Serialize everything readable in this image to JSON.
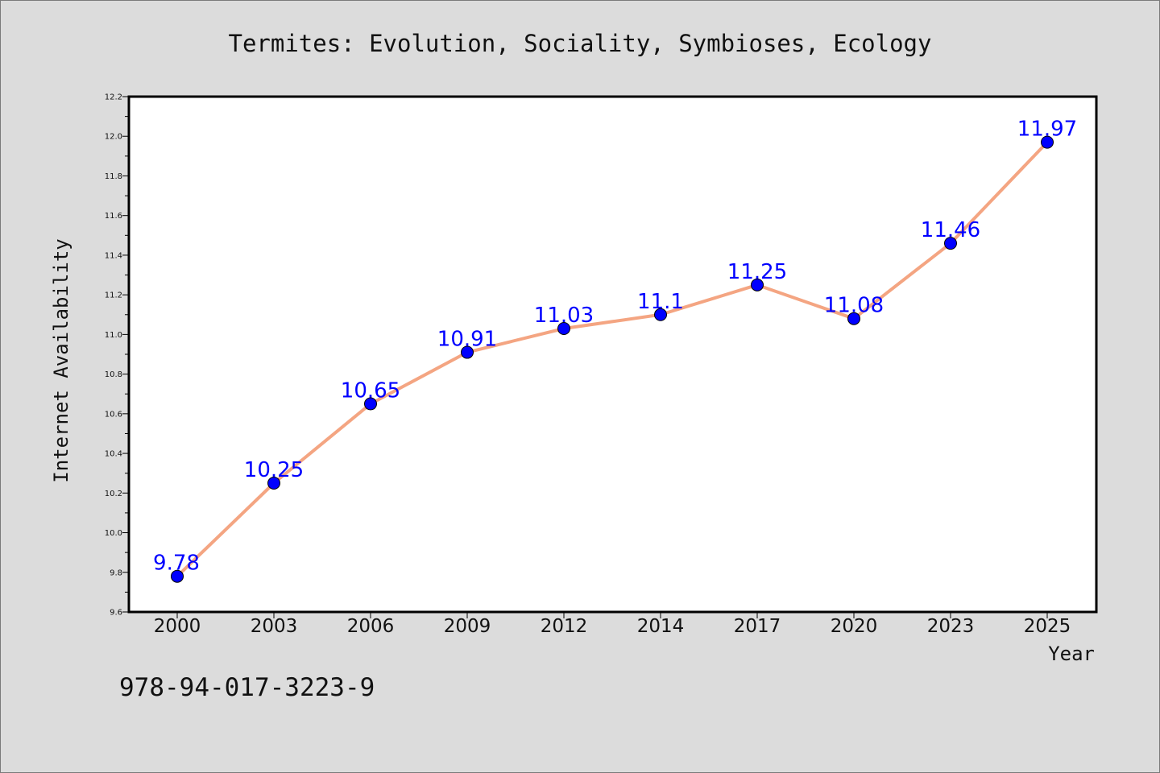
{
  "chart_data": {
    "type": "line",
    "title": "Termites: Evolution, Sociality, Symbioses, Ecology",
    "xlabel": "Year",
    "ylabel": "Internet Availability",
    "categories": [
      "2000",
      "2003",
      "2006",
      "2009",
      "2012",
      "2014",
      "2017",
      "2020",
      "2023",
      "2025"
    ],
    "values": [
      9.78,
      10.25,
      10.65,
      10.91,
      11.03,
      11.1,
      11.25,
      11.08,
      11.46,
      11.97
    ],
    "value_labels": [
      "9.78",
      "10.25",
      "10.65",
      "10.91",
      "11.03",
      "11.1",
      "11.25",
      "11.08",
      "11.46",
      "11.97"
    ],
    "ylim": [
      9.6,
      12.2
    ],
    "yticks": [
      "9.6",
      "9.8",
      "10.0",
      "10.2",
      "10.4",
      "10.6",
      "10.8",
      "11.0",
      "11.2",
      "11.4",
      "11.6",
      "11.8",
      "12.0",
      "12.2"
    ],
    "grid": false,
    "legend": "none",
    "line_color": "#f4a582",
    "marker_color": "#0000ff",
    "label_color": "#0000ff"
  },
  "footer": {
    "isbn": "978-94-017-3223-9"
  }
}
